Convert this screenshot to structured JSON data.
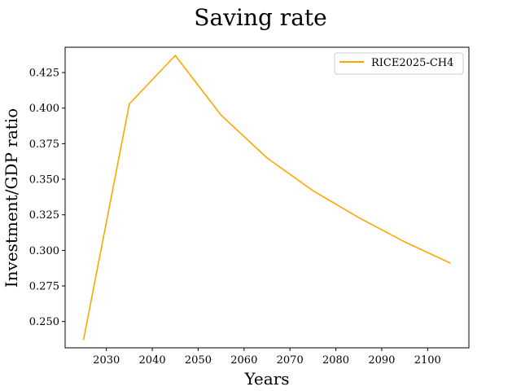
{
  "chart_data": {
    "type": "line",
    "title": "Saving rate",
    "xlabel": "Years",
    "ylabel": "Investment/GDP ratio",
    "xlim": [
      2021,
      2109
    ],
    "ylim": [
      0.2315,
      0.4428
    ],
    "xticks": [
      2030,
      2040,
      2050,
      2060,
      2070,
      2080,
      2090,
      2100
    ],
    "yticks": [
      0.25,
      0.275,
      0.3,
      0.325,
      0.35,
      0.375,
      0.4,
      0.425
    ],
    "ytick_labels": [
      "0.250",
      "0.275",
      "0.300",
      "0.325",
      "0.350",
      "0.375",
      "0.400",
      "0.425"
    ],
    "grid": false,
    "legend_position": "upper right",
    "series": [
      {
        "name": "RICE2025-CH4",
        "color": "#FFA500",
        "x": [
          2025,
          2035,
          2045,
          2055,
          2065,
          2075,
          2085,
          2095,
          2105
        ],
        "y": [
          0.237,
          0.403,
          0.437,
          0.395,
          0.365,
          0.342,
          0.323,
          0.306,
          0.291
        ]
      }
    ]
  }
}
